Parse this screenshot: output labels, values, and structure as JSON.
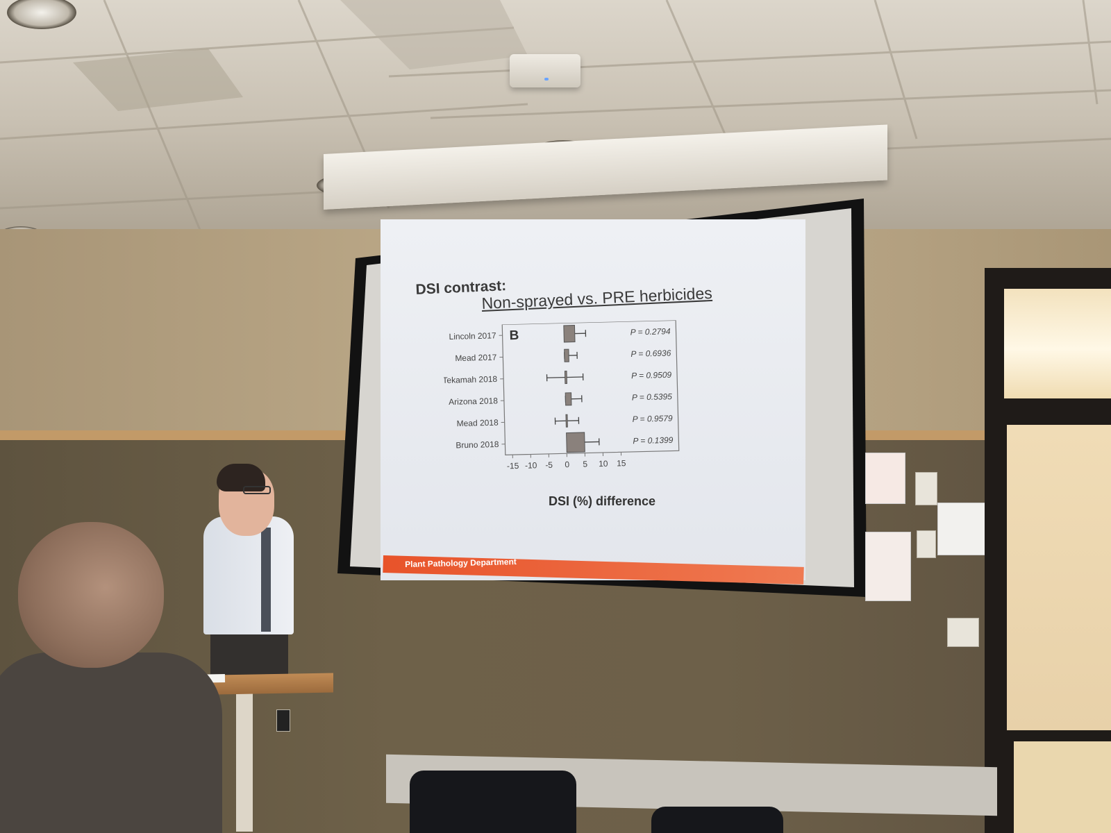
{
  "slide": {
    "title": "DSI contrast:",
    "subtitle": "Non-sprayed vs. PRE herbicides",
    "footer": "Plant Pathology Department"
  },
  "chart_data": {
    "type": "forest",
    "panel_label": "B",
    "xlabel": "DSI (%) difference",
    "xlim": [
      -17,
      31
    ],
    "x_ticks": [
      -15,
      -10,
      -5,
      0,
      5,
      10,
      15
    ],
    "categories": [
      "Lincoln 2017",
      "Mead 2017",
      "Tekamah 2018",
      "Arizona 2018",
      "Mead 2018",
      "Bruno 2018"
    ],
    "estimates": [
      3,
      1.2,
      0.5,
      1.6,
      0.2,
      5
    ],
    "ci_low": [
      1,
      0,
      -5,
      0,
      -3,
      2
    ],
    "ci_high": [
      6,
      3.5,
      5,
      4.5,
      3.5,
      9
    ],
    "p_values": [
      "P = 0.2794",
      "P = 0.6936",
      "P = 0.9509",
      "P = 0.5395",
      "P = 0.9579",
      "P = 0.1399"
    ],
    "colors": {
      "box": "#8a817c",
      "box_edge": "#555555",
      "axis": "#777777",
      "text": "#444444"
    }
  }
}
